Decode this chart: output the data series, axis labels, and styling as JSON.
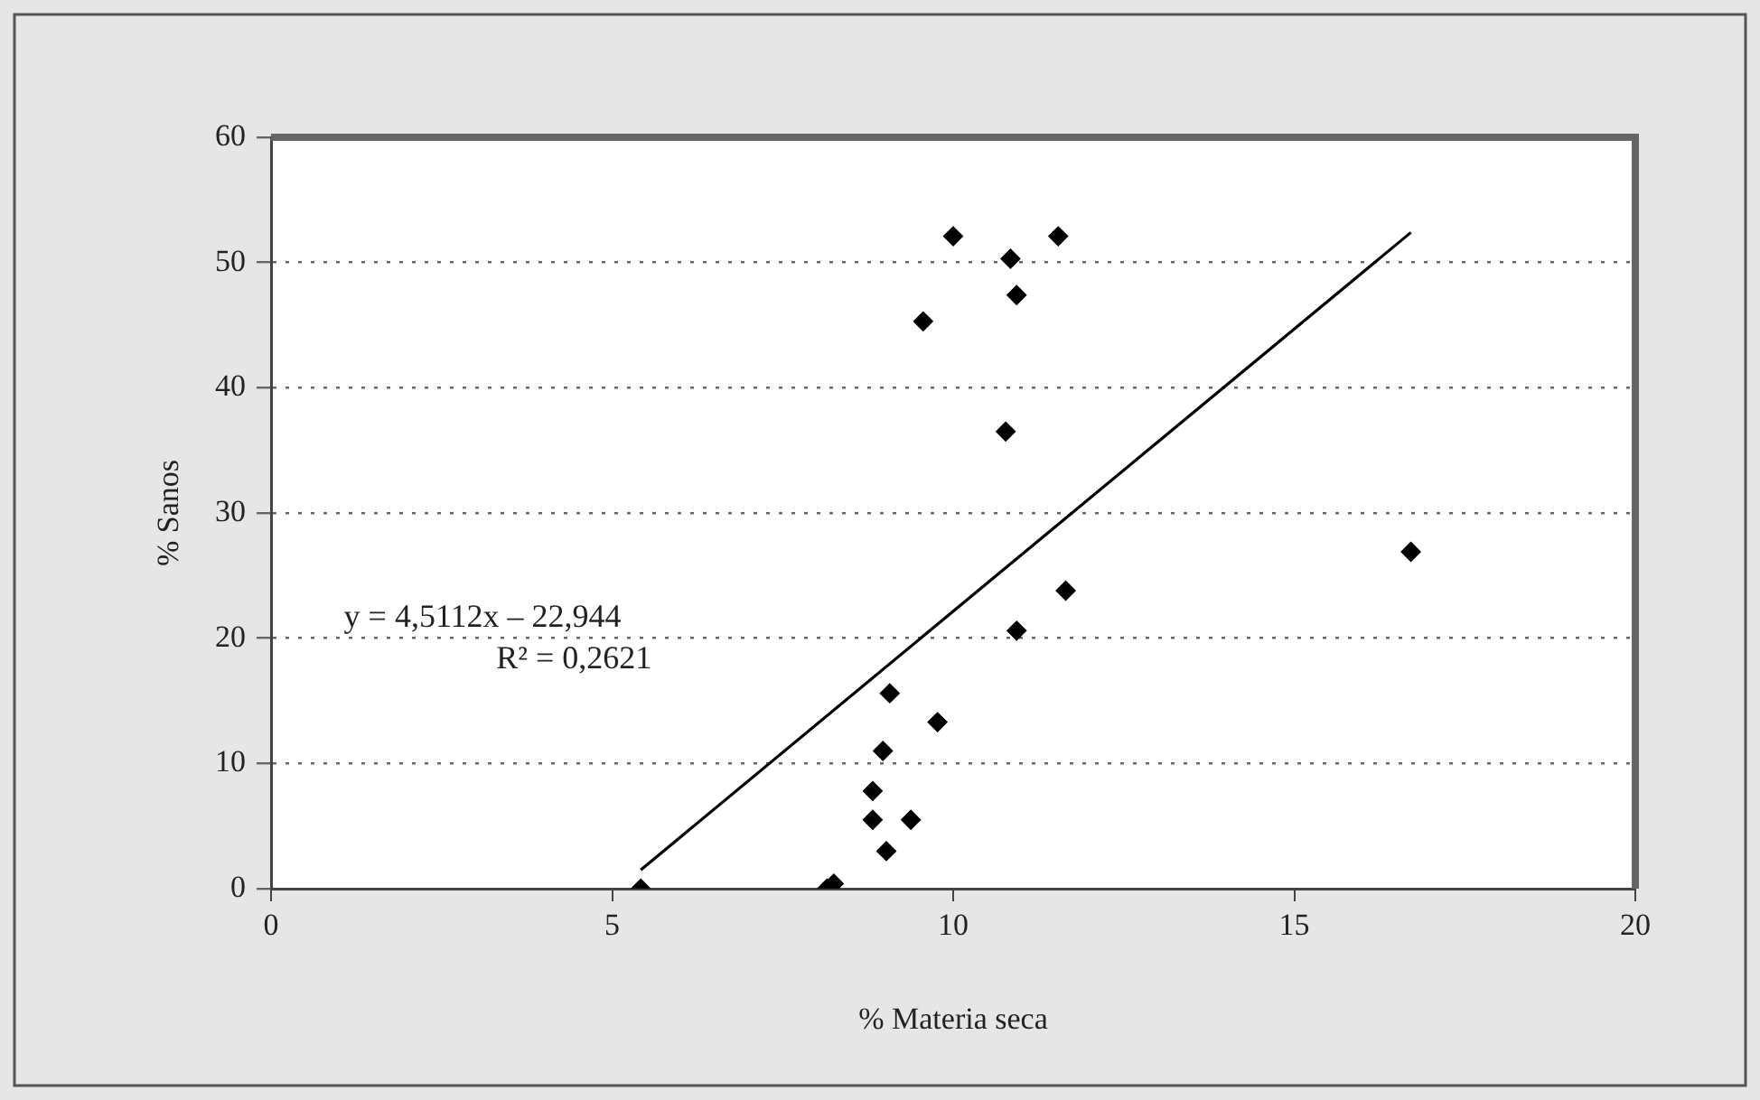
{
  "chart_data": {
    "type": "scatter",
    "xlabel": "% Materia seca",
    "ylabel": "% Sanos",
    "xlim": [
      0,
      20
    ],
    "xticks": [
      0,
      5,
      10,
      15,
      20
    ],
    "ylim": [
      0,
      60
    ],
    "yticks": [
      0,
      10,
      20,
      30,
      40,
      50,
      60
    ],
    "grid": "y",
    "series": [
      {
        "marker": "diamond",
        "color": "#000000",
        "x": [
          10.0,
          11.54,
          10.84,
          10.93,
          9.56,
          10.77,
          16.71,
          11.65,
          10.93,
          9.07,
          9.77,
          8.97,
          8.82,
          8.82,
          9.38,
          9.02,
          8.15,
          8.25,
          5.42
        ],
        "values": [
          52.1,
          52.1,
          50.3,
          47.4,
          45.3,
          36.5,
          26.9,
          23.8,
          20.6,
          15.6,
          13.3,
          11.0,
          7.8,
          5.5,
          5.5,
          3.0,
          0.0,
          0.4,
          0.0
        ]
      },
      {
        "type": "line",
        "marker": "none",
        "color": "#000000",
        "x": [
          5.42,
          16.71
        ],
        "values": [
          1.5,
          52.4
        ]
      }
    ],
    "annotations": [
      "y = 4,5112x – 22,944",
      "R² = 0,2621"
    ]
  }
}
